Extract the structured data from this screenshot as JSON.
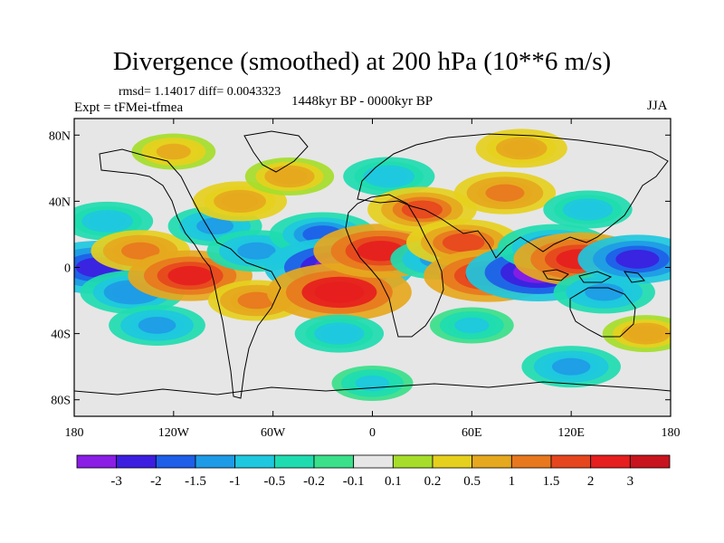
{
  "chart_data": {
    "type": "heatmap",
    "title": "Divergence (smoothed) at 200 hPa (10**6 m/s)",
    "stats_text": "rmsd= 1.14017 diff= 0.0043323",
    "experiment_text": "Expt = tFMei-tfmea",
    "period_text": "1448kyr BP - 0000kyr BP",
    "season": "JJA",
    "x_ticks": [
      "180",
      "120W",
      "60W",
      "0",
      "60E",
      "120E",
      "180"
    ],
    "y_ticks": [
      "80N",
      "40N",
      "0",
      "40S",
      "80S"
    ],
    "xlim": [
      -180,
      180
    ],
    "ylim": [
      -90,
      90
    ],
    "colorbar": {
      "labels": [
        "-3",
        "-2",
        "-1.5",
        "-1",
        "-0.5",
        "-0.2",
        "-0.1",
        "0.1",
        "0.2",
        "0.5",
        "1",
        "1.5",
        "2",
        "3"
      ],
      "colors": [
        "#8a1de6",
        "#3c1ee0",
        "#1e5ee8",
        "#1e9be6",
        "#1ec8de",
        "#1fdcb0",
        "#3ae08a",
        "#e6e6e6",
        "#a6dd2a",
        "#e6d01e",
        "#e6a81e",
        "#e8781e",
        "#e6461e",
        "#e61e1e",
        "#c8141e"
      ]
    },
    "fields": [
      {
        "lon": -165,
        "lat": 0,
        "value": -2.5
      },
      {
        "lon": -160,
        "lat": 28,
        "value": -0.9
      },
      {
        "lon": -140,
        "lat": 10,
        "value": 1.2
      },
      {
        "lon": -145,
        "lat": -15,
        "value": -1.4
      },
      {
        "lon": -130,
        "lat": -35,
        "value": -1.1
      },
      {
        "lon": -110,
        "lat": -5,
        "value": 2.2
      },
      {
        "lon": -95,
        "lat": 25,
        "value": -1.0
      },
      {
        "lon": -80,
        "lat": 40,
        "value": 1.0
      },
      {
        "lon": -70,
        "lat": 10,
        "value": -1.2
      },
      {
        "lon": -70,
        "lat": -20,
        "value": 1.1
      },
      {
        "lon": -50,
        "lat": 55,
        "value": 0.8
      },
      {
        "lon": -30,
        "lat": 20,
        "value": -1.5
      },
      {
        "lon": -20,
        "lat": 0,
        "value": -3.2
      },
      {
        "lon": -20,
        "lat": -15,
        "value": 3.0
      },
      {
        "lon": -20,
        "lat": -40,
        "value": -0.8
      },
      {
        "lon": 5,
        "lat": 10,
        "value": 2.6
      },
      {
        "lon": 10,
        "lat": 55,
        "value": -0.9
      },
      {
        "lon": 30,
        "lat": 35,
        "value": 1.6
      },
      {
        "lon": 40,
        "lat": 5,
        "value": -1.1
      },
      {
        "lon": 55,
        "lat": 15,
        "value": 1.8
      },
      {
        "lon": 70,
        "lat": -5,
        "value": 2.4
      },
      {
        "lon": 60,
        "lat": -35,
        "value": -0.6
      },
      {
        "lon": 80,
        "lat": 45,
        "value": 1.3
      },
      {
        "lon": 100,
        "lat": -3,
        "value": -3.0
      },
      {
        "lon": 110,
        "lat": 12,
        "value": -1.8
      },
      {
        "lon": 125,
        "lat": 5,
        "value": 2.5
      },
      {
        "lon": 130,
        "lat": 35,
        "value": -0.8
      },
      {
        "lon": 140,
        "lat": -15,
        "value": -1.3
      },
      {
        "lon": 160,
        "lat": 5,
        "value": -2.0
      },
      {
        "lon": 165,
        "lat": -40,
        "value": 0.7
      },
      {
        "lon": 0,
        "lat": -70,
        "value": -0.5
      },
      {
        "lon": 120,
        "lat": -60,
        "value": -1.2
      },
      {
        "lon": -120,
        "lat": 70,
        "value": 0.6
      },
      {
        "lon": 90,
        "lat": 72,
        "value": 0.9
      }
    ]
  }
}
